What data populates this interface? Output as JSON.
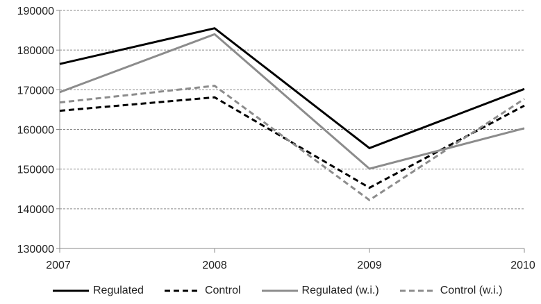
{
  "chart_data": {
    "type": "line",
    "title": "",
    "xlabel": "",
    "ylabel": "",
    "categories": [
      "2007",
      "2008",
      "2009",
      "2010"
    ],
    "ylim": [
      130000,
      190000
    ],
    "yticks": [
      130000,
      140000,
      150000,
      160000,
      170000,
      180000,
      190000
    ],
    "ytick_labels": [
      "130000",
      "140000",
      "150000",
      "160000",
      "170000",
      "180000",
      "190000"
    ],
    "grid": "horizontal dashed",
    "legend_position": "bottom",
    "series": [
      {
        "name": "Regulated",
        "values": [
          176500,
          185500,
          155300,
          170200
        ],
        "color": "#000000",
        "dashed": false
      },
      {
        "name": "Control",
        "values": [
          164700,
          168100,
          145300,
          166000
        ],
        "color": "#000000",
        "dashed": true
      },
      {
        "name": "Regulated (w.i.)",
        "values": [
          169400,
          184000,
          150100,
          160300
        ],
        "color": "#8c8c8c",
        "dashed": false
      },
      {
        "name": "Control (w.i.)",
        "values": [
          166800,
          171000,
          142200,
          167700
        ],
        "color": "#8c8c8c",
        "dashed": true
      }
    ]
  }
}
